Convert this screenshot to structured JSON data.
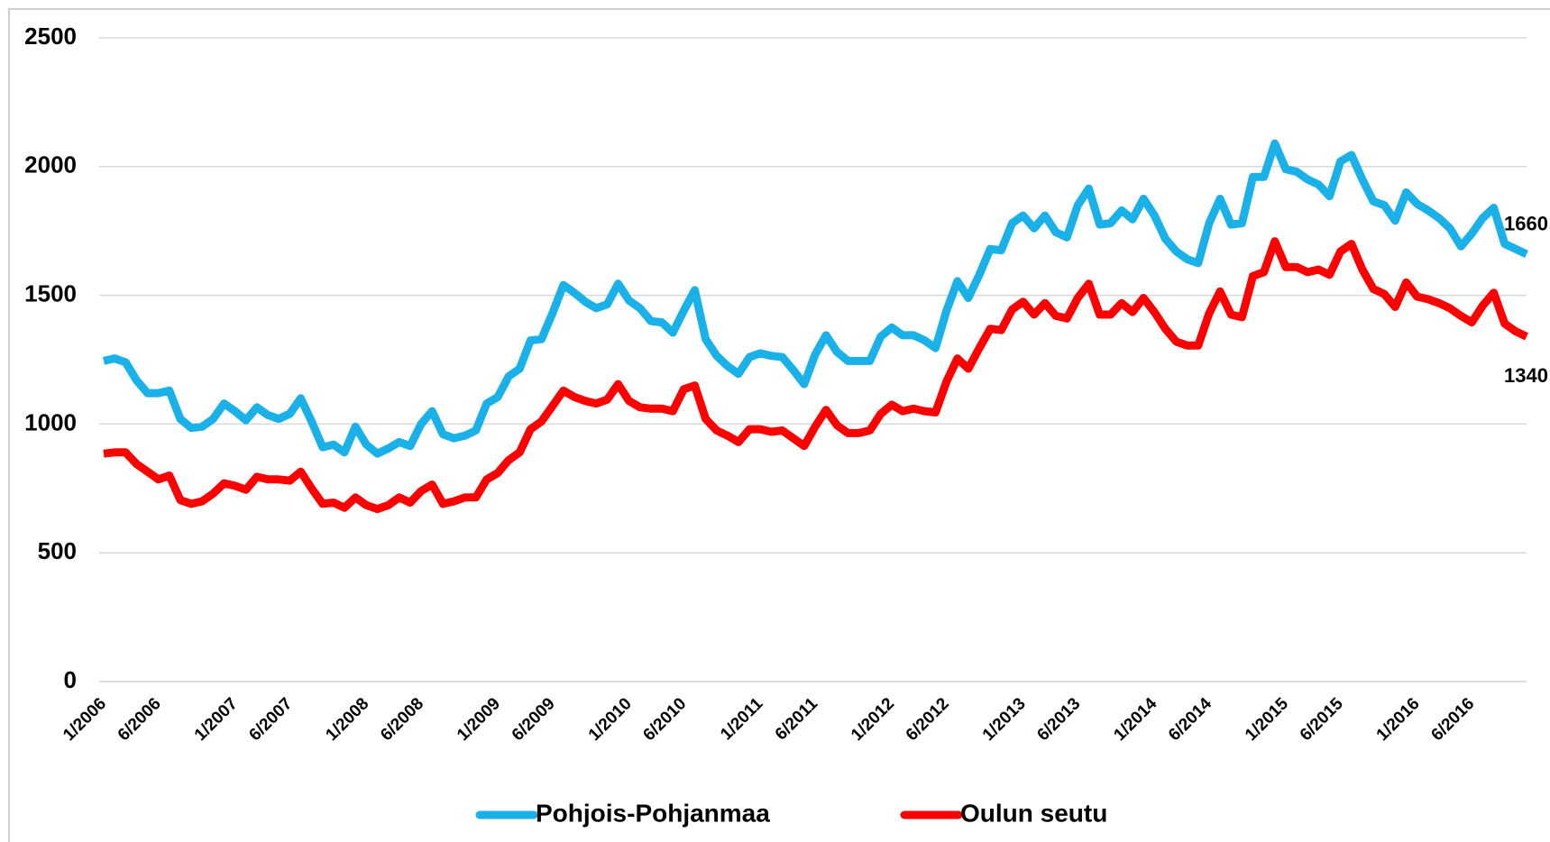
{
  "chart_data": {
    "type": "line",
    "categories": [
      "1/2006",
      null,
      null,
      null,
      null,
      "6/2006",
      null,
      null,
      null,
      null,
      null,
      null,
      "1/2007",
      null,
      null,
      null,
      null,
      "6/2007",
      null,
      null,
      null,
      null,
      null,
      null,
      "1/2008",
      null,
      null,
      null,
      null,
      "6/2008",
      null,
      null,
      null,
      null,
      null,
      null,
      "1/2009",
      null,
      null,
      null,
      null,
      "6/2009",
      null,
      null,
      null,
      null,
      null,
      null,
      "1/2010",
      null,
      null,
      null,
      null,
      "6/2010",
      null,
      null,
      null,
      null,
      null,
      null,
      "1/2011",
      null,
      null,
      null,
      null,
      "6/2011",
      null,
      null,
      null,
      null,
      null,
      null,
      "1/2012",
      null,
      null,
      null,
      null,
      "6/2012",
      null,
      null,
      null,
      null,
      null,
      null,
      "1/2013",
      null,
      null,
      null,
      null,
      "6/2013",
      null,
      null,
      null,
      null,
      null,
      null,
      "1/2014",
      null,
      null,
      null,
      null,
      "6/2014",
      null,
      null,
      null,
      null,
      null,
      null,
      "1/2015",
      null,
      null,
      null,
      null,
      "6/2015",
      null,
      null,
      null,
      null,
      null,
      null,
      "1/2016",
      null,
      null,
      null,
      null,
      "6/2016",
      null,
      null,
      null,
      null,
      null
    ],
    "series": [
      {
        "name": "Pohjois-Pohjanmaa",
        "color": "#1ab0e8",
        "values": [
          1245,
          1255,
          1240,
          1170,
          1120,
          1120,
          1130,
          1020,
          985,
          990,
          1020,
          1080,
          1050,
          1015,
          1065,
          1035,
          1020,
          1040,
          1100,
          1010,
          910,
          920,
          890,
          990,
          920,
          885,
          905,
          930,
          915,
          1000,
          1050,
          960,
          945,
          955,
          975,
          1080,
          1105,
          1185,
          1215,
          1325,
          1330,
          1430,
          1540,
          1510,
          1475,
          1450,
          1465,
          1545,
          1480,
          1450,
          1400,
          1395,
          1355,
          1440,
          1520,
          1330,
          1265,
          1225,
          1195,
          1260,
          1275,
          1265,
          1260,
          1210,
          1155,
          1270,
          1345,
          1280,
          1245,
          1245,
          1245,
          1340,
          1375,
          1345,
          1345,
          1325,
          1295,
          1440,
          1555,
          1490,
          1580,
          1680,
          1675,
          1780,
          1810,
          1760,
          1810,
          1745,
          1725,
          1850,
          1915,
          1775,
          1780,
          1830,
          1795,
          1875,
          1810,
          1720,
          1670,
          1640,
          1625,
          1780,
          1875,
          1775,
          1780,
          1960,
          1960,
          2090,
          1990,
          1980,
          1950,
          1930,
          1885,
          2020,
          2045,
          1950,
          1865,
          1850,
          1790,
          1900,
          1855,
          1830,
          1800,
          1760,
          1690,
          1740,
          1800,
          1840,
          1700,
          1680,
          1660
        ]
      },
      {
        "name": "Oulun seutu",
        "color": "#ff0000",
        "values": [
          885,
          890,
          890,
          845,
          815,
          785,
          800,
          705,
          690,
          700,
          730,
          770,
          760,
          745,
          795,
          785,
          785,
          780,
          815,
          750,
          690,
          695,
          675,
          715,
          685,
          670,
          685,
          715,
          695,
          740,
          765,
          690,
          700,
          715,
          715,
          785,
          810,
          860,
          890,
          980,
          1010,
          1070,
          1130,
          1105,
          1090,
          1080,
          1095,
          1155,
          1090,
          1065,
          1060,
          1060,
          1050,
          1135,
          1150,
          1020,
          975,
          955,
          930,
          980,
          980,
          970,
          975,
          945,
          915,
          990,
          1055,
          995,
          965,
          965,
          975,
          1040,
          1075,
          1050,
          1060,
          1050,
          1045,
          1165,
          1255,
          1215,
          1295,
          1370,
          1365,
          1445,
          1475,
          1425,
          1470,
          1420,
          1410,
          1490,
          1545,
          1425,
          1425,
          1470,
          1435,
          1490,
          1435,
          1370,
          1320,
          1305,
          1305,
          1430,
          1515,
          1425,
          1415,
          1575,
          1590,
          1710,
          1610,
          1610,
          1590,
          1600,
          1580,
          1670,
          1700,
          1600,
          1525,
          1505,
          1455,
          1550,
          1495,
          1485,
          1470,
          1450,
          1420,
          1395,
          1460,
          1510,
          1390,
          1360,
          1340
        ]
      }
    ],
    "ylim": [
      0,
      2500
    ],
    "yticks": [
      0,
      500,
      1000,
      1500,
      2000,
      2500
    ],
    "grid": true,
    "legend": "bottom"
  }
}
